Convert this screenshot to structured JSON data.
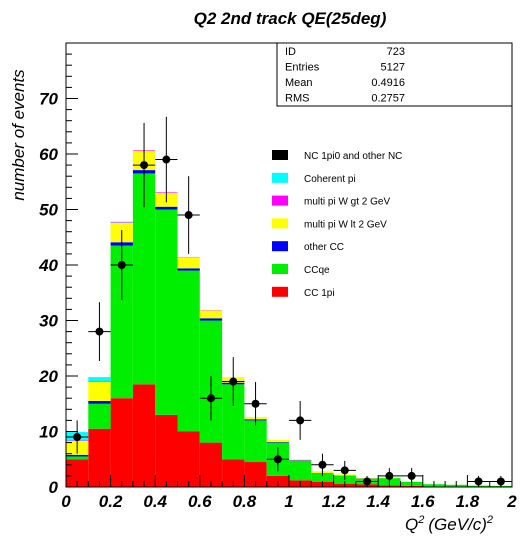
{
  "chart_data": {
    "type": "bar",
    "stacked": true,
    "title": "Q2 2nd track QE(25deg)",
    "xlabel": "Q^2 (GeV/c)^2",
    "xlabel_main": "Q",
    "xlabel_sup": "2",
    "xlabel_units": "(GeV/c)",
    "xlabel_units_sup": "2",
    "ylabel": "number of events",
    "xlim": [
      0,
      2
    ],
    "ylim": [
      0,
      80
    ],
    "x_ticks": [
      "0",
      "0.2",
      "0.4",
      "0.6",
      "0.8",
      "1",
      "1.2",
      "1.4",
      "1.6",
      "1.8",
      "2"
    ],
    "y_ticks": [
      "0",
      "10",
      "20",
      "30",
      "40",
      "50",
      "60",
      "70"
    ],
    "bin_edges": [
      0,
      0.1,
      0.2,
      0.3,
      0.4,
      0.5,
      0.6,
      0.7,
      0.8,
      0.9,
      1.0,
      1.1,
      1.2,
      1.3,
      1.4,
      1.5,
      1.6,
      1.7,
      1.8,
      1.9,
      2.0
    ],
    "series": [
      {
        "name": "CC 1pi",
        "color": "#ff0000",
        "values": [
          5,
          10.5,
          16,
          18.5,
          13,
          10,
          8,
          5,
          4.5,
          2,
          1.2,
          0.9,
          0.6,
          0.5,
          0.3,
          0.2,
          0.1,
          0.1,
          0.05,
          0
        ]
      },
      {
        "name": "CCqe",
        "color": "#00ee00",
        "values": [
          0.5,
          4.5,
          27.5,
          38,
          37,
          29,
          22,
          13.5,
          7.5,
          6,
          3.5,
          1.6,
          1.4,
          1,
          1.3,
          0.7,
          0.4,
          0.3,
          0.2,
          0.2
        ]
      },
      {
        "name": "other CC",
        "color": "#0000ff",
        "values": [
          0.3,
          0.5,
          0.6,
          0.6,
          0.5,
          0.4,
          0.4,
          0.3,
          0.2,
          0.1,
          0.1,
          0.05,
          0.05,
          0.05,
          0,
          0,
          0,
          0,
          0,
          0
        ]
      },
      {
        "name": "multi pi W lt 2 GeV",
        "color": "#ffff00",
        "values": [
          2.5,
          3.5,
          3.5,
          3.5,
          2.5,
          2,
          1.4,
          1,
          0.4,
          0.4,
          0.2,
          0.3,
          0.2,
          0.1,
          0.1,
          0.05,
          0,
          0,
          0,
          0
        ]
      },
      {
        "name": "multi pi W gt 2 GeV",
        "color": "#ff00ff",
        "values": [
          0.1,
          0.1,
          0.1,
          0.1,
          0.1,
          0.05,
          0.05,
          0,
          0,
          0,
          0,
          0,
          0,
          0,
          0,
          0,
          0,
          0,
          0,
          0
        ]
      },
      {
        "name": "Coherent pi",
        "color": "#00ffff",
        "values": [
          1.5,
          0.7,
          0.1,
          0,
          0,
          0,
          0,
          0,
          0,
          0,
          0,
          0,
          0,
          0,
          0,
          0,
          0,
          0,
          0,
          0
        ]
      },
      {
        "name": "NC 1pi0 and other NC",
        "color": "#000000",
        "values": [
          0,
          0,
          0,
          0,
          0,
          0,
          0,
          0,
          0,
          0,
          0,
          0,
          0,
          0,
          0,
          0,
          0,
          0,
          0,
          0
        ]
      }
    ],
    "data_points": {
      "x": [
        0.05,
        0.15,
        0.25,
        0.35,
        0.45,
        0.55,
        0.65,
        0.75,
        0.85,
        0.95,
        1.05,
        1.15,
        1.25,
        1.35,
        1.45,
        1.55,
        1.85,
        1.95
      ],
      "y": [
        9,
        28,
        40,
        58,
        59,
        49,
        16,
        19,
        15,
        5,
        12,
        4,
        3,
        1,
        2,
        2,
        1,
        1
      ],
      "yerr": [
        3,
        5.3,
        6.3,
        7.6,
        7.7,
        7,
        4,
        4.4,
        3.9,
        2.2,
        3.5,
        2,
        1.7,
        1,
        1.4,
        1.4,
        1,
        1
      ]
    },
    "stats_box": {
      "rows": [
        {
          "label": "ID",
          "value": "723"
        },
        {
          "label": "Entries",
          "value": "5127"
        },
        {
          "label": "Mean",
          "value": "0.4916"
        },
        {
          "label": "RMS",
          "value": "0.2757"
        }
      ]
    },
    "legend": {
      "position": "right",
      "entries": [
        {
          "label": "NC 1pi0 and other NC",
          "color": "#000000"
        },
        {
          "label": "Coherent pi",
          "color": "#00ffff"
        },
        {
          "label": "multi pi W gt 2 GeV",
          "color": "#ff00ff"
        },
        {
          "label": "multi pi W lt 2 GeV",
          "color": "#ffff00"
        },
        {
          "label": "other CC",
          "color": "#0000ff"
        },
        {
          "label": "CCqe",
          "color": "#00ee00"
        },
        {
          "label": "CC 1pi",
          "color": "#ff0000"
        }
      ]
    }
  }
}
